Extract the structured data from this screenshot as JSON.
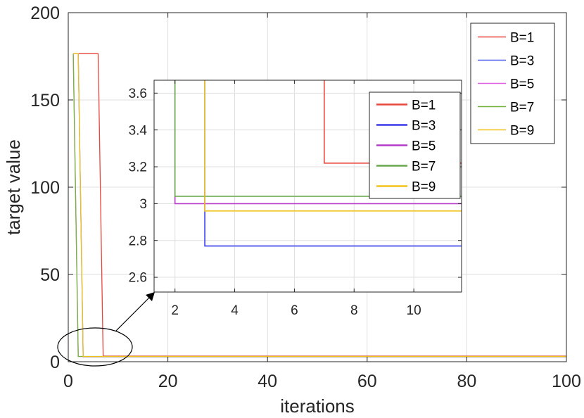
{
  "chart_data": [
    {
      "type": "line",
      "title": "",
      "xlabel": "iterations",
      "ylabel": "target value",
      "xlim": [
        0,
        100
      ],
      "ylim": [
        0,
        200
      ],
      "xticks": [
        0,
        20,
        40,
        60,
        80,
        100
      ],
      "yticks": [
        0,
        50,
        100,
        150,
        200
      ],
      "grid": true,
      "legend_position": "top-right",
      "series": [
        {
          "name": "B=1",
          "color": "#e8453c",
          "x": [
            1,
            6,
            7,
            100
          ],
          "y": [
            176.5,
            176.5,
            3.22,
            3.22
          ]
        },
        {
          "name": "B=3",
          "color": "#4a5cf0",
          "x": [
            1,
            2,
            3,
            100
          ],
          "y": [
            176.5,
            176.5,
            2.77,
            2.77
          ]
        },
        {
          "name": "B=5",
          "color": "#e05ee0",
          "x": [
            1,
            2,
            100
          ],
          "y": [
            176.5,
            3.0,
            3.0
          ]
        },
        {
          "name": "B=7",
          "color": "#74b33c",
          "x": [
            1,
            2,
            100
          ],
          "y": [
            176.5,
            3.04,
            3.04
          ]
        },
        {
          "name": "B=9",
          "color": "#f2c21b",
          "x": [
            1,
            2,
            3,
            100
          ],
          "y": [
            176.5,
            176.5,
            2.96,
            2.96
          ]
        }
      ]
    },
    {
      "type": "line",
      "title": "",
      "xlabel": "",
      "ylabel": "",
      "xlim": [
        1.3,
        11.6
      ],
      "ylim": [
        2.52,
        3.67
      ],
      "xticks": [
        2,
        4,
        6,
        8,
        10
      ],
      "yticks": [
        2.6,
        2.8,
        3,
        3.2,
        3.4,
        3.6
      ],
      "ytick_labels": [
        "2.6",
        "2.8",
        "3",
        "3.2",
        "3.4",
        "3.6"
      ],
      "grid": true,
      "legend_position": "top-right",
      "series": [
        {
          "name": "B=1",
          "color": "#e8453c",
          "x": [
            7,
            7,
            11.6
          ],
          "y": [
            3.67,
            3.22,
            3.22
          ]
        },
        {
          "name": "B=3",
          "color": "#3a3aeb",
          "x": [
            3,
            3,
            11.6
          ],
          "y": [
            3.67,
            2.77,
            2.77
          ]
        },
        {
          "name": "B=5",
          "color": "#b43cc8",
          "x": [
            2,
            2,
            11.6
          ],
          "y": [
            3.67,
            3.0,
            3.0
          ]
        },
        {
          "name": "B=7",
          "color": "#6aa84f",
          "x": [
            2,
            2,
            11.6
          ],
          "y": [
            3.67,
            3.04,
            3.04
          ]
        },
        {
          "name": "B=9",
          "color": "#f2c21b",
          "x": [
            3,
            3,
            11.6
          ],
          "y": [
            3.67,
            2.96,
            2.96
          ]
        }
      ]
    }
  ]
}
